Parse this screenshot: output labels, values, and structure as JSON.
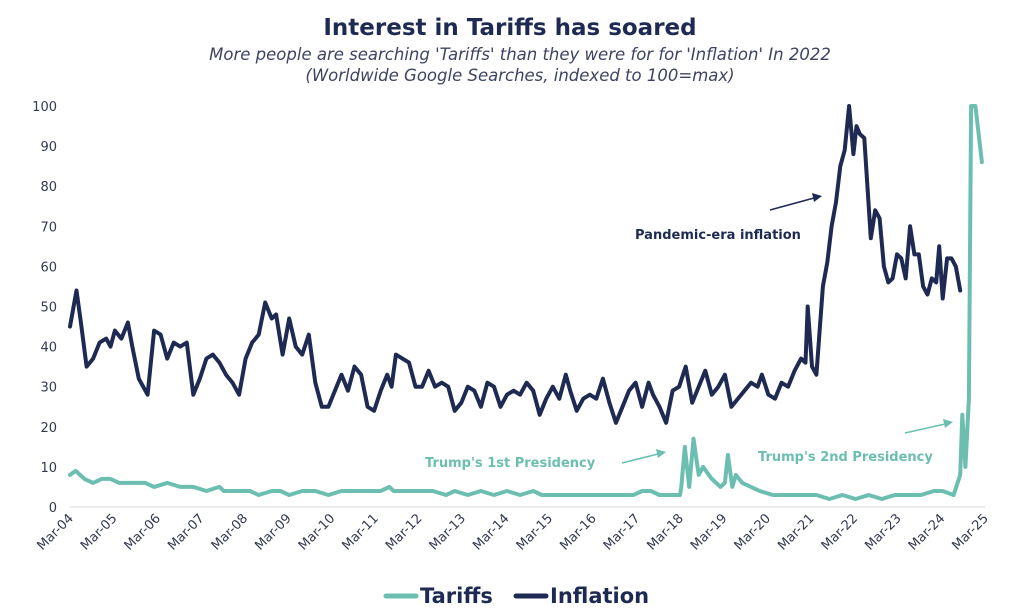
{
  "chart_data": {
    "type": "line",
    "title": "Interest in Tariffs has soared",
    "subtitle_line1": "More people are searching 'Tariffs' than they were for for 'Inflation' In 2022",
    "subtitle_line2": "(Worldwide Google Searches, indexed to 100=max)",
    "xlabel": "",
    "ylabel": "",
    "ylim": [
      0,
      100
    ],
    "yticks": [
      0,
      10,
      20,
      30,
      40,
      50,
      60,
      70,
      80,
      90,
      100
    ],
    "x_tick_labels": [
      "Mar-04",
      "Mar-05",
      "Mar-06",
      "Mar-07",
      "Mar-08",
      "Mar-09",
      "Mar-10",
      "Mar-11",
      "Mar-12",
      "Mar-13",
      "Mar-14",
      "Mar-15",
      "Mar-16",
      "Mar-17",
      "Mar-18",
      "Mar-19",
      "Mar-20",
      "Mar-21",
      "Mar-22",
      "Mar-23",
      "Mar-24",
      "Mar-25"
    ],
    "grid": false,
    "legend_position": "bottom-center",
    "series": [
      {
        "name": "Tariffs",
        "color": "#6cbfb0",
        "points": [
          [
            2004.17,
            8
          ],
          [
            2004.3,
            9
          ],
          [
            2004.5,
            7
          ],
          [
            2004.7,
            6
          ],
          [
            2004.9,
            7
          ],
          [
            2005.1,
            7
          ],
          [
            2005.3,
            6
          ],
          [
            2005.6,
            6
          ],
          [
            2005.9,
            6
          ],
          [
            2006.1,
            5
          ],
          [
            2006.4,
            6
          ],
          [
            2006.7,
            5
          ],
          [
            2007.0,
            5
          ],
          [
            2007.3,
            4
          ],
          [
            2007.6,
            5
          ],
          [
            2007.7,
            4
          ],
          [
            2008.0,
            4
          ],
          [
            2008.3,
            4
          ],
          [
            2008.5,
            3
          ],
          [
            2008.8,
            4
          ],
          [
            2009.0,
            4
          ],
          [
            2009.2,
            3
          ],
          [
            2009.5,
            4
          ],
          [
            2009.8,
            4
          ],
          [
            2010.1,
            3
          ],
          [
            2010.4,
            4
          ],
          [
            2010.7,
            4
          ],
          [
            2011.0,
            4
          ],
          [
            2011.3,
            4
          ],
          [
            2011.5,
            5
          ],
          [
            2011.6,
            4
          ],
          [
            2011.9,
            4
          ],
          [
            2012.2,
            4
          ],
          [
            2012.5,
            4
          ],
          [
            2012.8,
            3
          ],
          [
            2013.0,
            4
          ],
          [
            2013.3,
            3
          ],
          [
            2013.6,
            4
          ],
          [
            2013.9,
            3
          ],
          [
            2014.2,
            4
          ],
          [
            2014.5,
            3
          ],
          [
            2014.8,
            4
          ],
          [
            2015.0,
            3
          ],
          [
            2015.3,
            3
          ],
          [
            2015.6,
            3
          ],
          [
            2015.9,
            3
          ],
          [
            2016.2,
            3
          ],
          [
            2016.5,
            3
          ],
          [
            2016.8,
            3
          ],
          [
            2017.1,
            3
          ],
          [
            2017.3,
            4
          ],
          [
            2017.5,
            4
          ],
          [
            2017.7,
            3
          ],
          [
            2018.0,
            3
          ],
          [
            2018.17,
            3
          ],
          [
            2018.2,
            5
          ],
          [
            2018.28,
            15
          ],
          [
            2018.38,
            5
          ],
          [
            2018.48,
            17
          ],
          [
            2018.6,
            8
          ],
          [
            2018.7,
            10
          ],
          [
            2018.9,
            7
          ],
          [
            2019.1,
            5
          ],
          [
            2019.2,
            6
          ],
          [
            2019.27,
            13
          ],
          [
            2019.37,
            5
          ],
          [
            2019.45,
            8
          ],
          [
            2019.6,
            6
          ],
          [
            2019.8,
            5
          ],
          [
            2020.0,
            4
          ],
          [
            2020.3,
            3
          ],
          [
            2020.7,
            3
          ],
          [
            2021.0,
            3
          ],
          [
            2021.3,
            3
          ],
          [
            2021.6,
            2
          ],
          [
            2021.9,
            3
          ],
          [
            2022.2,
            2
          ],
          [
            2022.5,
            3
          ],
          [
            2022.8,
            2
          ],
          [
            2023.1,
            3
          ],
          [
            2023.4,
            3
          ],
          [
            2023.7,
            3
          ],
          [
            2024.0,
            4
          ],
          [
            2024.2,
            4
          ],
          [
            2024.45,
            3
          ],
          [
            2024.6,
            8
          ],
          [
            2024.65,
            23
          ],
          [
            2024.72,
            10
          ],
          [
            2024.8,
            27
          ],
          [
            2024.85,
            100
          ],
          [
            2024.95,
            100
          ],
          [
            2025.1,
            86
          ]
        ]
      },
      {
        "name": "Inflation",
        "color": "#1e2a52",
        "points": [
          [
            2004.17,
            45
          ],
          [
            2004.32,
            54
          ],
          [
            2004.42,
            46
          ],
          [
            2004.55,
            35
          ],
          [
            2004.7,
            37
          ],
          [
            2004.85,
            41
          ],
          [
            2005.0,
            42
          ],
          [
            2005.1,
            40
          ],
          [
            2005.2,
            44
          ],
          [
            2005.35,
            42
          ],
          [
            2005.5,
            46
          ],
          [
            2005.6,
            40
          ],
          [
            2005.75,
            32
          ],
          [
            2005.95,
            28
          ],
          [
            2006.1,
            44
          ],
          [
            2006.25,
            43
          ],
          [
            2006.4,
            37
          ],
          [
            2006.55,
            41
          ],
          [
            2006.7,
            40
          ],
          [
            2006.85,
            41
          ],
          [
            2007.0,
            28
          ],
          [
            2007.15,
            32
          ],
          [
            2007.3,
            37
          ],
          [
            2007.45,
            38
          ],
          [
            2007.6,
            36
          ],
          [
            2007.75,
            33
          ],
          [
            2007.9,
            31
          ],
          [
            2008.05,
            28
          ],
          [
            2008.2,
            37
          ],
          [
            2008.35,
            41
          ],
          [
            2008.5,
            43
          ],
          [
            2008.65,
            51
          ],
          [
            2008.8,
            47
          ],
          [
            2008.9,
            48
          ],
          [
            2009.05,
            38
          ],
          [
            2009.2,
            47
          ],
          [
            2009.35,
            40
          ],
          [
            2009.5,
            38
          ],
          [
            2009.65,
            43
          ],
          [
            2009.8,
            31
          ],
          [
            2009.95,
            25
          ],
          [
            2010.1,
            25
          ],
          [
            2010.25,
            29
          ],
          [
            2010.4,
            33
          ],
          [
            2010.55,
            29
          ],
          [
            2010.7,
            35
          ],
          [
            2010.85,
            33
          ],
          [
            2011.0,
            25
          ],
          [
            2011.15,
            24
          ],
          [
            2011.3,
            29
          ],
          [
            2011.45,
            33
          ],
          [
            2011.55,
            30
          ],
          [
            2011.65,
            38
          ],
          [
            2011.8,
            37
          ],
          [
            2011.95,
            36
          ],
          [
            2012.1,
            30
          ],
          [
            2012.25,
            30
          ],
          [
            2012.4,
            34
          ],
          [
            2012.55,
            30
          ],
          [
            2012.7,
            31
          ],
          [
            2012.85,
            30
          ],
          [
            2013.0,
            24
          ],
          [
            2013.15,
            26
          ],
          [
            2013.3,
            30
          ],
          [
            2013.45,
            29
          ],
          [
            2013.6,
            25
          ],
          [
            2013.75,
            31
          ],
          [
            2013.9,
            30
          ],
          [
            2014.05,
            25
          ],
          [
            2014.2,
            28
          ],
          [
            2014.35,
            29
          ],
          [
            2014.5,
            28
          ],
          [
            2014.65,
            31
          ],
          [
            2014.8,
            29
          ],
          [
            2014.95,
            23
          ],
          [
            2015.1,
            27
          ],
          [
            2015.25,
            30
          ],
          [
            2015.4,
            27
          ],
          [
            2015.55,
            33
          ],
          [
            2015.65,
            29
          ],
          [
            2015.8,
            24
          ],
          [
            2015.95,
            27
          ],
          [
            2016.1,
            28
          ],
          [
            2016.25,
            27
          ],
          [
            2016.4,
            32
          ],
          [
            2016.55,
            26
          ],
          [
            2016.7,
            21
          ],
          [
            2016.85,
            25
          ],
          [
            2017.0,
            29
          ],
          [
            2017.15,
            31
          ],
          [
            2017.3,
            25
          ],
          [
            2017.45,
            31
          ],
          [
            2017.55,
            28
          ],
          [
            2017.7,
            25
          ],
          [
            2017.85,
            21
          ],
          [
            2018.0,
            29
          ],
          [
            2018.15,
            30
          ],
          [
            2018.3,
            35
          ],
          [
            2018.45,
            26
          ],
          [
            2018.6,
            30
          ],
          [
            2018.75,
            34
          ],
          [
            2018.9,
            28
          ],
          [
            2019.05,
            30
          ],
          [
            2019.2,
            33
          ],
          [
            2019.35,
            25
          ],
          [
            2019.5,
            27
          ],
          [
            2019.65,
            29
          ],
          [
            2019.8,
            31
          ],
          [
            2019.95,
            30
          ],
          [
            2020.05,
            33
          ],
          [
            2020.2,
            28
          ],
          [
            2020.35,
            27
          ],
          [
            2020.5,
            31
          ],
          [
            2020.65,
            30
          ],
          [
            2020.8,
            34
          ],
          [
            2020.95,
            37
          ],
          [
            2021.05,
            36
          ],
          [
            2021.1,
            50
          ],
          [
            2021.2,
            35
          ],
          [
            2021.3,
            33
          ],
          [
            2021.45,
            55
          ],
          [
            2021.55,
            61
          ],
          [
            2021.65,
            70
          ],
          [
            2021.75,
            76
          ],
          [
            2021.85,
            85
          ],
          [
            2021.95,
            89
          ],
          [
            2022.05,
            100
          ],
          [
            2022.15,
            88
          ],
          [
            2022.22,
            95
          ],
          [
            2022.3,
            93
          ],
          [
            2022.4,
            92
          ],
          [
            2022.55,
            67
          ],
          [
            2022.65,
            74
          ],
          [
            2022.75,
            72
          ],
          [
            2022.85,
            60
          ],
          [
            2022.95,
            56
          ],
          [
            2023.05,
            57
          ],
          [
            2023.15,
            63
          ],
          [
            2023.25,
            62
          ],
          [
            2023.35,
            57
          ],
          [
            2023.45,
            70
          ],
          [
            2023.55,
            63
          ],
          [
            2023.65,
            63
          ],
          [
            2023.75,
            55
          ],
          [
            2023.85,
            53
          ],
          [
            2023.95,
            57
          ],
          [
            2024.05,
            56
          ],
          [
            2024.12,
            65
          ],
          [
            2024.2,
            52
          ],
          [
            2024.3,
            62
          ],
          [
            2024.4,
            62
          ],
          [
            2024.5,
            60
          ],
          [
            2024.6,
            54
          ]
        ]
      }
    ]
  },
  "annotations": {
    "pandemic_label": "Pandemic-era inflation",
    "trump1_label": "Trump's 1st Presidency",
    "trump2_label": "Trump's 2nd Presidency"
  },
  "legend": {
    "tariffs_label": "Tariffs",
    "inflation_label": "Inflation"
  },
  "colors": {
    "tariffs": "#6cbfb0",
    "inflation": "#1e2a52",
    "title": "#1e2a52"
  }
}
